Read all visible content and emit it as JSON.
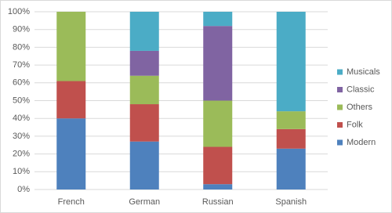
{
  "chart_data": {
    "type": "stacked_bar",
    "categories": [
      "French",
      "German",
      "Russian",
      "Spanish"
    ],
    "series": [
      {
        "name": "Modern",
        "color": "#4e81bd",
        "values": [
          40,
          27,
          3,
          23
        ]
      },
      {
        "name": "Folk",
        "color": "#c0504d",
        "values": [
          21,
          21,
          21,
          11
        ]
      },
      {
        "name": "Others",
        "color": "#9bbb59",
        "values": [
          39,
          16,
          26,
          10
        ]
      },
      {
        "name": "Classic",
        "color": "#8064a2",
        "values": [
          0,
          14,
          42,
          0
        ]
      },
      {
        "name": "Musicals",
        "color": "#4bacc6",
        "values": [
          0,
          22,
          8,
          56
        ]
      }
    ],
    "ylim": [
      0,
      100
    ],
    "yticks": [
      {
        "value": 0,
        "label": "0%"
      },
      {
        "value": 10,
        "label": "10%"
      },
      {
        "value": 20,
        "label": "20%"
      },
      {
        "value": 30,
        "label": "30%"
      },
      {
        "value": 40,
        "label": "40%"
      },
      {
        "value": 50,
        "label": "50%"
      },
      {
        "value": 60,
        "label": "60%"
      },
      {
        "value": 70,
        "label": "70%"
      },
      {
        "value": 80,
        "label": "80%"
      },
      {
        "value": 90,
        "label": "90%"
      },
      {
        "value": 100,
        "label": "100%"
      }
    ],
    "grid": true,
    "legend": "right"
  }
}
